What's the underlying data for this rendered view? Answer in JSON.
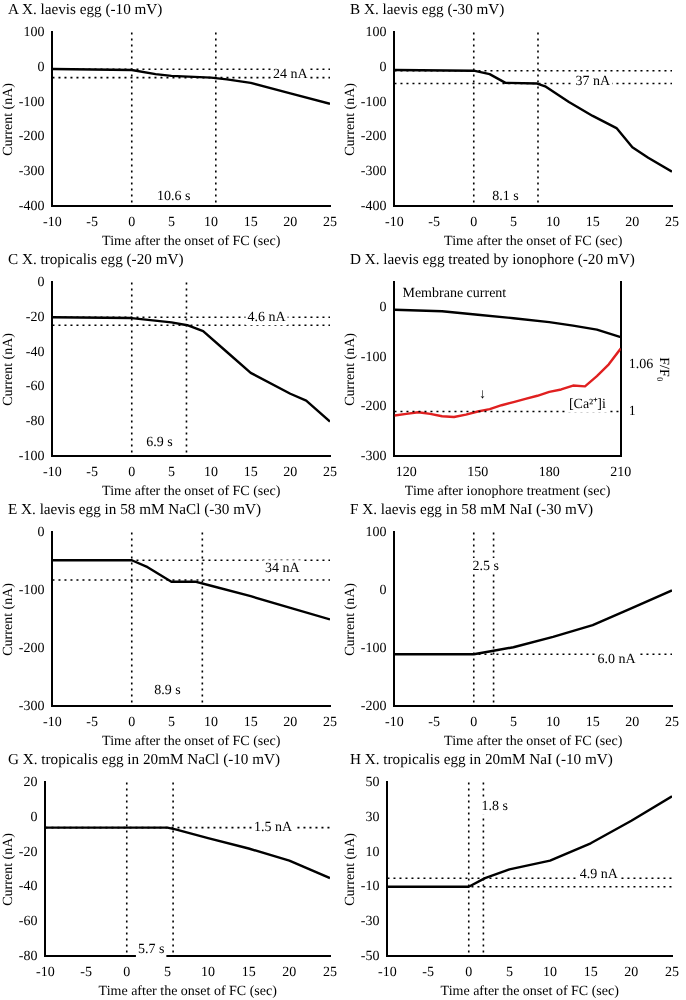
{
  "chart_data": [
    {
      "type": "line",
      "title": "A X. laevis egg (-10 mV)",
      "xlabel": "Time after the onset of FC (sec)",
      "ylabel": "Current (nA)",
      "xlim": [
        -10,
        25
      ],
      "xticks": [
        -10,
        -5,
        0,
        5,
        10,
        15,
        20,
        25
      ],
      "ylim": [
        -400,
        100
      ],
      "yticks": [
        100,
        0,
        -100,
        -200,
        -300,
        -400
      ],
      "series": [
        {
          "color": "#000000",
          "x": [
            -10,
            0,
            3,
            5,
            10,
            12,
            15,
            20,
            25
          ],
          "values": [
            -5,
            -8,
            -20,
            -25,
            -30,
            -35,
            -45,
            -75,
            -105
          ]
        }
      ],
      "ref_lines": [
        {
          "axis": "y",
          "value": -6,
          "line_style": "dotted"
        },
        {
          "axis": "y",
          "value": -30,
          "line_style": "dotted"
        },
        {
          "axis": "x",
          "value": 0,
          "line_style": "dotted"
        },
        {
          "axis": "x",
          "value": 10.6,
          "line_style": "dotted"
        }
      ],
      "annotations": [
        {
          "text": "24 nA",
          "x": 20,
          "y": -20
        },
        {
          "text": "10.6 s",
          "x": 5.3,
          "y": -370
        }
      ]
    },
    {
      "type": "line",
      "title": "B X. laevis egg (-30 mV)",
      "xlabel": "Time after the onset of FC (sec)",
      "ylabel": "Current (nA)",
      "xlim": [
        -10,
        25
      ],
      "xticks": [
        -10,
        -5,
        0,
        5,
        10,
        15,
        20,
        25
      ],
      "ylim": [
        -400,
        100
      ],
      "yticks": [
        100,
        0,
        -100,
        -200,
        -300,
        -400
      ],
      "series": [
        {
          "color": "#000000",
          "x": [
            -10,
            0,
            2,
            4,
            8,
            9,
            12,
            15,
            18,
            20,
            22,
            25
          ],
          "values": [
            -8,
            -10,
            -20,
            -45,
            -47,
            -55,
            -100,
            -140,
            -175,
            -230,
            -260,
            -300
          ]
        }
      ],
      "ref_lines": [
        {
          "axis": "y",
          "value": -10,
          "line_style": "dotted"
        },
        {
          "axis": "y",
          "value": -47,
          "line_style": "dotted"
        },
        {
          "axis": "x",
          "value": 0,
          "line_style": "dotted"
        },
        {
          "axis": "x",
          "value": 8.1,
          "line_style": "dotted"
        }
      ],
      "annotations": [
        {
          "text": "37 nA",
          "x": 15,
          "y": -40
        },
        {
          "text": "8.1 s",
          "x": 4,
          "y": -370
        }
      ]
    },
    {
      "type": "line",
      "title": "C X. tropicalis egg (-20 mV)",
      "xlabel": "Time after the onset of FC (sec)",
      "ylabel": "Current (nA)",
      "xlim": [
        -10,
        25
      ],
      "xticks": [
        -10,
        -5,
        0,
        5,
        10,
        15,
        20,
        25
      ],
      "ylim": [
        -100,
        0
      ],
      "yticks": [
        0,
        -20,
        -40,
        -60,
        -80,
        -100
      ],
      "series": [
        {
          "color": "#000000",
          "x": [
            -10,
            0,
            5,
            7,
            9,
            12,
            15,
            20,
            22,
            25
          ],
          "values": [
            -20,
            -20.5,
            -23,
            -24.6,
            -28,
            -40,
            -52,
            -64,
            -68,
            -80
          ]
        }
      ],
      "ref_lines": [
        {
          "axis": "y",
          "value": -20,
          "line_style": "dotted"
        },
        {
          "axis": "y",
          "value": -24.6,
          "line_style": "dotted"
        },
        {
          "axis": "x",
          "value": 0,
          "line_style": "dotted"
        },
        {
          "axis": "x",
          "value": 6.9,
          "line_style": "dotted"
        }
      ],
      "annotations": [
        {
          "text": "4.6 nA",
          "x": 17,
          "y": -20
        },
        {
          "text": "6.9 s",
          "x": 3.5,
          "y": -92
        }
      ]
    },
    {
      "type": "line",
      "title": "D X. laevis egg treated by ionophore (-20 mV)",
      "xlabel": "Time after ionophore treatment (sec)",
      "ylabel": "Current (nA)",
      "y2label": "F/F₀",
      "xlim": [
        115,
        210
      ],
      "xticks": [
        120,
        150,
        180,
        210
      ],
      "ylim": [
        -300,
        50
      ],
      "yticks": [
        0,
        -100,
        -200,
        -300
      ],
      "y2lim": [
        0.943,
        1.164
      ],
      "y2ticks": [
        1,
        1.06
      ],
      "series": [
        {
          "name": "Membrane current",
          "color": "#000000",
          "x": [
            115,
            135,
            150,
            165,
            180,
            190,
            200,
            210
          ],
          "values": [
            -5,
            -8,
            -15,
            -22,
            -30,
            -37,
            -45,
            -60
          ]
        },
        {
          "color": "#e02020",
          "axis": "y2",
          "x": [
            115,
            120,
            125,
            130,
            135,
            140,
            145,
            150,
            155,
            160,
            165,
            170,
            175,
            180,
            185,
            190,
            195,
            200,
            205,
            210
          ],
          "values": [
            0.995,
            0.997,
            0.999,
            0.997,
            0.994,
            0.993,
            0.996,
            1.0,
            1.003,
            1.008,
            1.012,
            1.016,
            1.02,
            1.025,
            1.028,
            1.033,
            1.032,
            1.045,
            1.06,
            1.08
          ]
        }
      ],
      "ref_lines": [
        {
          "axis": "y2",
          "value": 1,
          "line_style": "dotted"
        }
      ],
      "annotations": [
        {
          "text": "↓",
          "x": 152,
          "y": -175
        },
        {
          "text": "[Ca²⁺]i",
          "x": 196,
          "y": -195
        }
      ]
    },
    {
      "type": "line",
      "title": "E X. laevis egg in 58 mM NaCl (-30 mV)",
      "xlabel": "Time after the onset of FC (sec)",
      "ylabel": "Current (nA)",
      "xlim": [
        -10,
        25
      ],
      "xticks": [
        -10,
        -5,
        0,
        5,
        10,
        15,
        20,
        25
      ],
      "ylim": [
        -300,
        0
      ],
      "yticks": [
        0,
        -100,
        -200,
        -300
      ],
      "series": [
        {
          "color": "#000000",
          "x": [
            -10,
            0,
            2,
            5,
            8,
            10,
            15,
            20,
            25
          ],
          "values": [
            -48,
            -48,
            -60,
            -85,
            -85,
            -92,
            -110,
            -130,
            -150
          ]
        }
      ],
      "ref_lines": [
        {
          "axis": "y",
          "value": -48,
          "line_style": "dotted"
        },
        {
          "axis": "y",
          "value": -82,
          "line_style": "dotted"
        },
        {
          "axis": "x",
          "value": 0,
          "line_style": "dotted"
        },
        {
          "axis": "x",
          "value": 8.9,
          "line_style": "dotted"
        }
      ],
      "annotations": [
        {
          "text": "34 nA",
          "x": 19,
          "y": -62
        },
        {
          "text": "8.9 s",
          "x": 4.5,
          "y": -272
        }
      ]
    },
    {
      "type": "line",
      "title": "F X. laevis egg in 58 mM NaI (-30 mV)",
      "xlabel": "Time after the onset of FC (sec)",
      "ylabel": "Current (nA)",
      "xlim": [
        -10,
        25
      ],
      "xticks": [
        -10,
        -5,
        0,
        5,
        10,
        15,
        20,
        25
      ],
      "ylim": [
        -200,
        100
      ],
      "yticks": [
        100,
        0,
        -100,
        -200
      ],
      "series": [
        {
          "color": "#000000",
          "x": [
            -10,
            -5,
            0,
            2.5,
            5,
            10,
            15,
            20,
            25
          ],
          "values": [
            -110,
            -110,
            -110,
            -104,
            -98,
            -80,
            -60,
            -30,
            0
          ]
        }
      ],
      "ref_lines": [
        {
          "axis": "y",
          "value": -110,
          "line_style": "dotted"
        },
        {
          "axis": "x",
          "value": 0,
          "line_style": "dotted"
        },
        {
          "axis": "x",
          "value": 2.5,
          "line_style": "dotted"
        }
      ],
      "annotations": [
        {
          "text": "2.5 s",
          "x": 1.5,
          "y": 42
        },
        {
          "text": "6.0 nA",
          "x": 18,
          "y": -118
        }
      ]
    },
    {
      "type": "line",
      "title": "G X. tropicalis egg in 20mM NaCl (-10 mV)",
      "xlabel": "Time after the onset of FC (sec)",
      "ylabel": "Current (nA)",
      "xlim": [
        -10,
        25
      ],
      "xticks": [
        -10,
        -5,
        0,
        5,
        10,
        15,
        20,
        25
      ],
      "ylim": [
        -80,
        20
      ],
      "yticks": [
        20,
        0,
        -20,
        -40,
        -60,
        -80
      ],
      "series": [
        {
          "color": "#000000",
          "x": [
            -10,
            0,
            5,
            6,
            10,
            15,
            20,
            25
          ],
          "values": [
            -6,
            -6,
            -6,
            -7,
            -12,
            -18,
            -25,
            -35
          ]
        }
      ],
      "ref_lines": [
        {
          "axis": "y",
          "value": -6,
          "line_style": "dotted"
        },
        {
          "axis": "x",
          "value": 0,
          "line_style": "dotted"
        },
        {
          "axis": "x",
          "value": 5.7,
          "line_style": "dotted"
        }
      ],
      "annotations": [
        {
          "text": "1.5 nA",
          "x": 18,
          "y": -6
        },
        {
          "text": "5.7 s",
          "x": 3,
          "y": -76
        }
      ]
    },
    {
      "type": "line",
      "title": "H X. tropicalis egg in 20mM NaI (-10 mV)",
      "xlabel": "Time after the onset of FC (sec)",
      "ylabel": "Current (nA)",
      "xlim": [
        -10,
        25
      ],
      "xticks": [
        -10,
        -5,
        0,
        5,
        10,
        15,
        20,
        25
      ],
      "ylim": [
        -50,
        50
      ],
      "yticks": [
        50,
        30,
        10,
        -10,
        -30,
        -50
      ],
      "series": [
        {
          "color": "#000000",
          "x": [
            -10,
            0,
            2,
            5,
            10,
            15,
            20,
            25
          ],
          "values": [
            -10,
            -10,
            -5,
            0,
            5,
            15,
            28,
            42
          ]
        }
      ],
      "ref_lines": [
        {
          "axis": "y",
          "value": -10,
          "line_style": "dotted"
        },
        {
          "axis": "y",
          "value": -5.1,
          "line_style": "dotted"
        },
        {
          "axis": "x",
          "value": 0,
          "line_style": "dotted"
        },
        {
          "axis": "x",
          "value": 1.8,
          "line_style": "dotted"
        }
      ],
      "annotations": [
        {
          "text": "1.8 s",
          "x": 3.2,
          "y": 36
        },
        {
          "text": "4.9 nA",
          "x": 16,
          "y": -3
        }
      ]
    }
  ]
}
